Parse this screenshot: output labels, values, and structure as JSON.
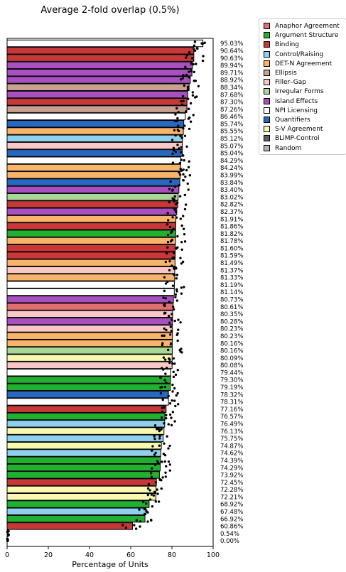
{
  "chart_data": {
    "type": "bar",
    "orientation": "horizontal",
    "title": "Average 2-fold overlap (0.5%)",
    "xlabel": "Percentage of Units",
    "ylabel": "",
    "xlim": [
      0,
      100
    ],
    "xticks": [
      "0",
      "20",
      "40",
      "60",
      "80",
      "100"
    ],
    "grid": false,
    "legend_position": "outside-right-top",
    "legend": [
      {
        "name": "Anaphor Agreement",
        "color": "#e07070"
      },
      {
        "name": "Argument Structure",
        "color": "#22b030"
      },
      {
        "name": "Binding",
        "color": "#c83838"
      },
      {
        "name": "Control/Raising",
        "color": "#8fd0ee"
      },
      {
        "name": "DET-N Agreement",
        "color": "#f8b46a"
      },
      {
        "name": "Ellipsis",
        "color": "#c8a090"
      },
      {
        "name": "Filler–Gap",
        "color": "#f8c8c8"
      },
      {
        "name": "Irregular Forms",
        "color": "#a8d898"
      },
      {
        "name": "Island Effects",
        "color": "#a850c0"
      },
      {
        "name": "NPI Licensing",
        "color": "#ffffff"
      },
      {
        "name": "Quantifiers",
        "color": "#2868c0"
      },
      {
        "name": "S-V Agreement",
        "color": "#f8f8b0"
      },
      {
        "name": "BLiMP-Control",
        "color": "#606060"
      },
      {
        "name": "Random",
        "color": "#b4b4b4"
      }
    ],
    "bars": [
      {
        "category": "NPI Licensing",
        "value": 95.03,
        "label": "95.03%"
      },
      {
        "category": "Binding",
        "value": 90.64,
        "label": "90.64%"
      },
      {
        "category": "Binding",
        "value": 90.63,
        "label": "90.63%"
      },
      {
        "category": "Island Effects",
        "value": 89.94,
        "label": "89.94%"
      },
      {
        "category": "Island Effects",
        "value": 89.71,
        "label": "89.71%"
      },
      {
        "category": "Island Effects",
        "value": 88.92,
        "label": "88.92%"
      },
      {
        "category": "Ellipsis",
        "value": 88.34,
        "label": "88.34%"
      },
      {
        "category": "Island Effects",
        "value": 87.68,
        "label": "87.68%"
      },
      {
        "category": "Binding",
        "value": 87.3,
        "label": "87.30%"
      },
      {
        "category": "Ellipsis",
        "value": 87.26,
        "label": "87.26%"
      },
      {
        "category": "NPI Licensing",
        "value": 86.46,
        "label": "86.46%"
      },
      {
        "category": "Quantifiers",
        "value": 85.74,
        "label": "85.74%"
      },
      {
        "category": "DET-N Agreement",
        "value": 85.55,
        "label": "85.55%"
      },
      {
        "category": "Control/Raising",
        "value": 85.12,
        "label": "85.12%"
      },
      {
        "category": "Filler–Gap",
        "value": 85.07,
        "label": "85.07%"
      },
      {
        "category": "Quantifiers",
        "value": 85.04,
        "label": "85.04%"
      },
      {
        "category": "NPI Licensing",
        "value": 84.29,
        "label": "84.29%"
      },
      {
        "category": "DET-N Agreement",
        "value": 84.24,
        "label": "84.24%"
      },
      {
        "category": "DET-N Agreement",
        "value": 83.99,
        "label": "83.99%"
      },
      {
        "category": "Quantifiers",
        "value": 83.84,
        "label": "83.84%"
      },
      {
        "category": "Island Effects",
        "value": 83.4,
        "label": "83.40%"
      },
      {
        "category": "Irregular Forms",
        "value": 83.02,
        "label": "83.02%"
      },
      {
        "category": "Binding",
        "value": 82.82,
        "label": "82.82%"
      },
      {
        "category": "Island Effects",
        "value": 82.37,
        "label": "82.37%"
      },
      {
        "category": "DET-N Agreement",
        "value": 81.91,
        "label": "81.91%"
      },
      {
        "category": "Binding",
        "value": 81.86,
        "label": "81.86%"
      },
      {
        "category": "Argument Structure",
        "value": 81.82,
        "label": "81.82%"
      },
      {
        "category": "DET-N Agreement",
        "value": 81.78,
        "label": "81.78%"
      },
      {
        "category": "Binding",
        "value": 81.6,
        "label": "81.60%"
      },
      {
        "category": "Binding",
        "value": 81.59,
        "label": "81.59%"
      },
      {
        "category": "DET-N Agreement",
        "value": 81.49,
        "label": "81.49%"
      },
      {
        "category": "Filler–Gap",
        "value": 81.37,
        "label": "81.37%"
      },
      {
        "category": "DET-N Agreement",
        "value": 81.33,
        "label": "81.33%"
      },
      {
        "category": "NPI Licensing",
        "value": 81.19,
        "label": "81.19%"
      },
      {
        "category": "NPI Licensing",
        "value": 81.14,
        "label": "81.14%"
      },
      {
        "category": "Island Effects",
        "value": 80.73,
        "label": "80.73%"
      },
      {
        "category": "Anaphor Agreement",
        "value": 80.61,
        "label": "80.61%"
      },
      {
        "category": "Filler–Gap",
        "value": 80.35,
        "label": "80.35%"
      },
      {
        "category": "Island Effects",
        "value": 80.28,
        "label": "80.28%"
      },
      {
        "category": "Filler–Gap",
        "value": 80.23,
        "label": "80.23%"
      },
      {
        "category": "DET-N Agreement",
        "value": 80.23,
        "label": "80.23%"
      },
      {
        "category": "DET-N Agreement",
        "value": 80.16,
        "label": "80.16%"
      },
      {
        "category": "Irregular Forms",
        "value": 80.16,
        "label": "80.16%"
      },
      {
        "category": "S-V Agreement",
        "value": 80.09,
        "label": "80.09%"
      },
      {
        "category": "Filler–Gap",
        "value": 80.08,
        "label": "80.08%"
      },
      {
        "category": "NPI Licensing",
        "value": 79.44,
        "label": "79.44%"
      },
      {
        "category": "Argument Structure",
        "value": 79.3,
        "label": "79.30%"
      },
      {
        "category": "Argument Structure",
        "value": 79.19,
        "label": "79.19%"
      },
      {
        "category": "Quantifiers",
        "value": 78.32,
        "label": "78.32%"
      },
      {
        "category": "NPI Licensing",
        "value": 78.31,
        "label": "78.31%"
      },
      {
        "category": "Binding",
        "value": 77.16,
        "label": "77.16%"
      },
      {
        "category": "Argument Structure",
        "value": 76.57,
        "label": "76.57%"
      },
      {
        "category": "Control/Raising",
        "value": 76.49,
        "label": "76.49%"
      },
      {
        "category": "S-V Agreement",
        "value": 76.13,
        "label": "76.13%"
      },
      {
        "category": "Control/Raising",
        "value": 75.75,
        "label": "75.75%"
      },
      {
        "category": "S-V Agreement",
        "value": 74.87,
        "label": "74.87%"
      },
      {
        "category": "Control/Raising",
        "value": 74.62,
        "label": "74.62%"
      },
      {
        "category": "Argument Structure",
        "value": 74.39,
        "label": "74.39%"
      },
      {
        "category": "Argument Structure",
        "value": 74.29,
        "label": "74.29%"
      },
      {
        "category": "Argument Structure",
        "value": 73.92,
        "label": "73.92%"
      },
      {
        "category": "Binding",
        "value": 72.45,
        "label": "72.45%"
      },
      {
        "category": "S-V Agreement",
        "value": 72.28,
        "label": "72.28%"
      },
      {
        "category": "S-V Agreement",
        "value": 72.21,
        "label": "72.21%"
      },
      {
        "category": "Argument Structure",
        "value": 68.92,
        "label": "68.92%"
      },
      {
        "category": "Control/Raising",
        "value": 67.48,
        "label": "67.48%"
      },
      {
        "category": "Argument Structure",
        "value": 66.92,
        "label": "66.92%"
      },
      {
        "category": "Binding",
        "value": 60.86,
        "label": "60.86%"
      },
      {
        "category": "BLiMP-Control",
        "value": 0.54,
        "label": "0.54%"
      },
      {
        "category": "Random",
        "value": 0.0,
        "label": "0.00%"
      }
    ]
  }
}
